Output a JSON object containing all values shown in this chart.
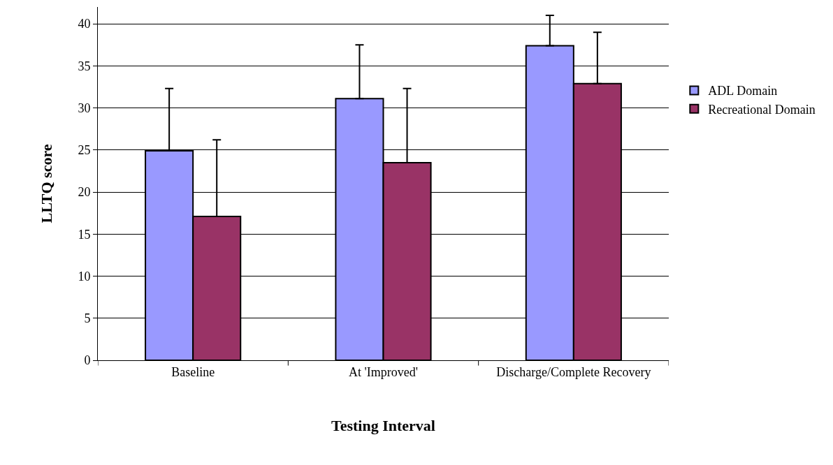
{
  "chart_data": {
    "type": "bar",
    "xlabel": "Testing Interval",
    "ylabel": "LLTQ score",
    "categories": [
      "Baseline",
      "At 'Improved'",
      "Discharge/Complete Recovery"
    ],
    "series": [
      {
        "name": "ADL Domain",
        "color": "#9999ff",
        "values": [
          24.9,
          31.1,
          37.4
        ],
        "errors": [
          [
            24.9,
            32.3
          ],
          [
            31.1,
            37.5
          ],
          [
            37.4,
            41.0
          ]
        ]
      },
      {
        "name": "Recreational Domain",
        "color": "#993366",
        "values": [
          17.1,
          23.5,
          32.9
        ],
        "errors": [
          [
            17.1,
            26.2
          ],
          [
            23.5,
            32.3
          ],
          [
            32.9,
            39.0
          ]
        ]
      }
    ],
    "ylim": [
      0,
      42
    ],
    "yticks": [
      0,
      5,
      10,
      15,
      20,
      25,
      30,
      35,
      40
    ],
    "grid": "y",
    "legend": "right"
  }
}
